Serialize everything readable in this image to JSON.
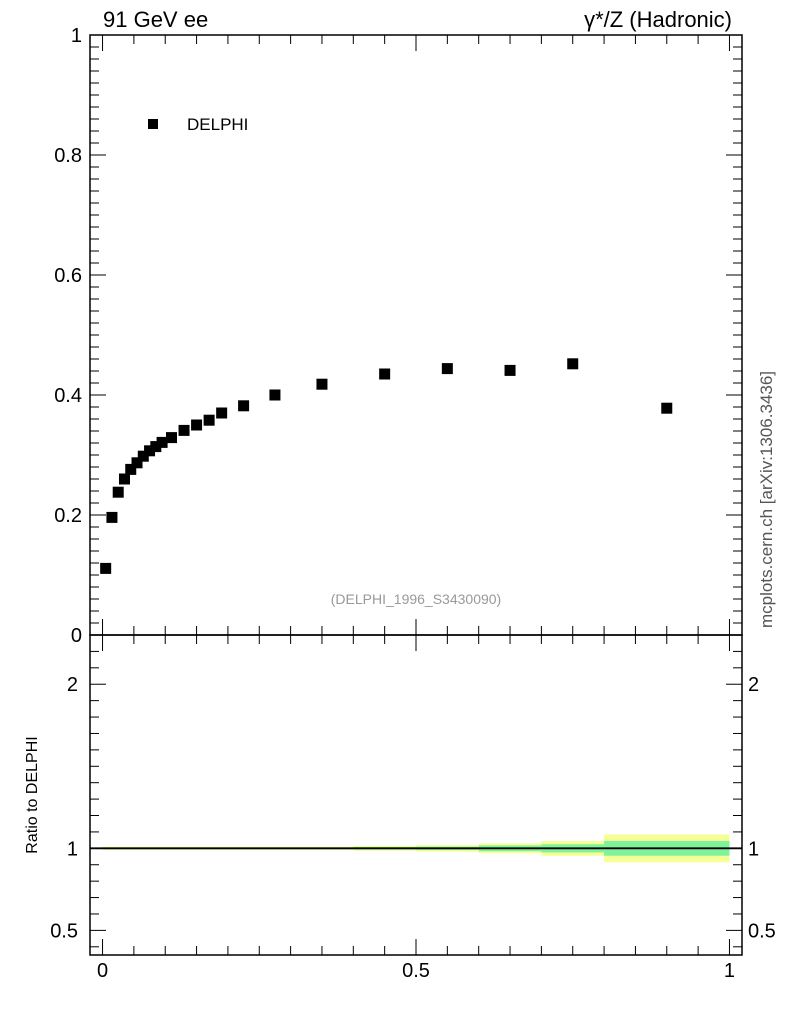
{
  "header": {
    "left": "91 GeV ee",
    "right": "γ*/Z (Hadronic)"
  },
  "side_label": "mcplots.cern.ch [arXiv:1306.3436]",
  "chart_data": [
    {
      "type": "scatter",
      "xlim": [
        -0.02,
        1.02
      ],
      "ylim": [
        0,
        1
      ],
      "y_ticks": [
        {
          "v": 0.2,
          "label": "0.2"
        },
        {
          "v": 0.4,
          "label": "0.4"
        },
        {
          "v": 0.6,
          "label": "0.6"
        },
        {
          "v": 0.8,
          "label": "0.8"
        },
        {
          "v": 1,
          "label": "1"
        },
        {
          "v": 0,
          "label": "0"
        }
      ],
      "legend": {
        "label": "DELPHI",
        "placement": "top-left"
      },
      "annotation": "(DELPHI_1996_S3430090)",
      "series": [
        {
          "name": "DELPHI",
          "color": "#000000",
          "marker": "square",
          "x": [
            0.005,
            0.015,
            0.025,
            0.035,
            0.045,
            0.055,
            0.065,
            0.075,
            0.085,
            0.095,
            0.11,
            0.13,
            0.15,
            0.17,
            0.19,
            0.225,
            0.275,
            0.35,
            0.45,
            0.55,
            0.65,
            0.75,
            0.9
          ],
          "y": [
            0.111,
            0.196,
            0.238,
            0.26,
            0.276,
            0.287,
            0.298,
            0.307,
            0.314,
            0.321,
            0.329,
            0.341,
            0.35,
            0.358,
            0.37,
            0.382,
            0.4,
            0.418,
            0.435,
            0.444,
            0.441,
            0.452,
            0.378
          ]
        }
      ]
    },
    {
      "type": "line",
      "ylabel": "Ratio to DELPHI",
      "xlim": [
        -0.02,
        1.02
      ],
      "ylim": [
        0.35,
        2.3
      ],
      "x_ticks": [
        {
          "v": 0,
          "label": "0"
        },
        {
          "v": 0.5,
          "label": "0.5"
        },
        {
          "v": 1,
          "label": "1"
        }
      ],
      "y_ticks": [
        {
          "v": 0.5,
          "label": "0.5"
        },
        {
          "v": 1,
          "label": "1"
        },
        {
          "v": 2,
          "label": "2"
        }
      ],
      "reference_line": 1,
      "uncertainty_bands": [
        {
          "x0": 0.0,
          "x1": 0.4,
          "inner": 0.006,
          "outer": 0.01
        },
        {
          "x0": 0.4,
          "x1": 0.5,
          "inner": 0.008,
          "outer": 0.015
        },
        {
          "x0": 0.5,
          "x1": 0.6,
          "inner": 0.01,
          "outer": 0.02
        },
        {
          "x0": 0.6,
          "x1": 0.7,
          "inner": 0.018,
          "outer": 0.03
        },
        {
          "x0": 0.7,
          "x1": 0.8,
          "inner": 0.025,
          "outer": 0.045
        },
        {
          "x0": 0.8,
          "x1": 1.0,
          "inner": 0.045,
          "outer": 0.085
        }
      ],
      "colors": {
        "inner": "#7ff29a",
        "outer": "#f5ff96",
        "line": "#000000"
      }
    }
  ]
}
